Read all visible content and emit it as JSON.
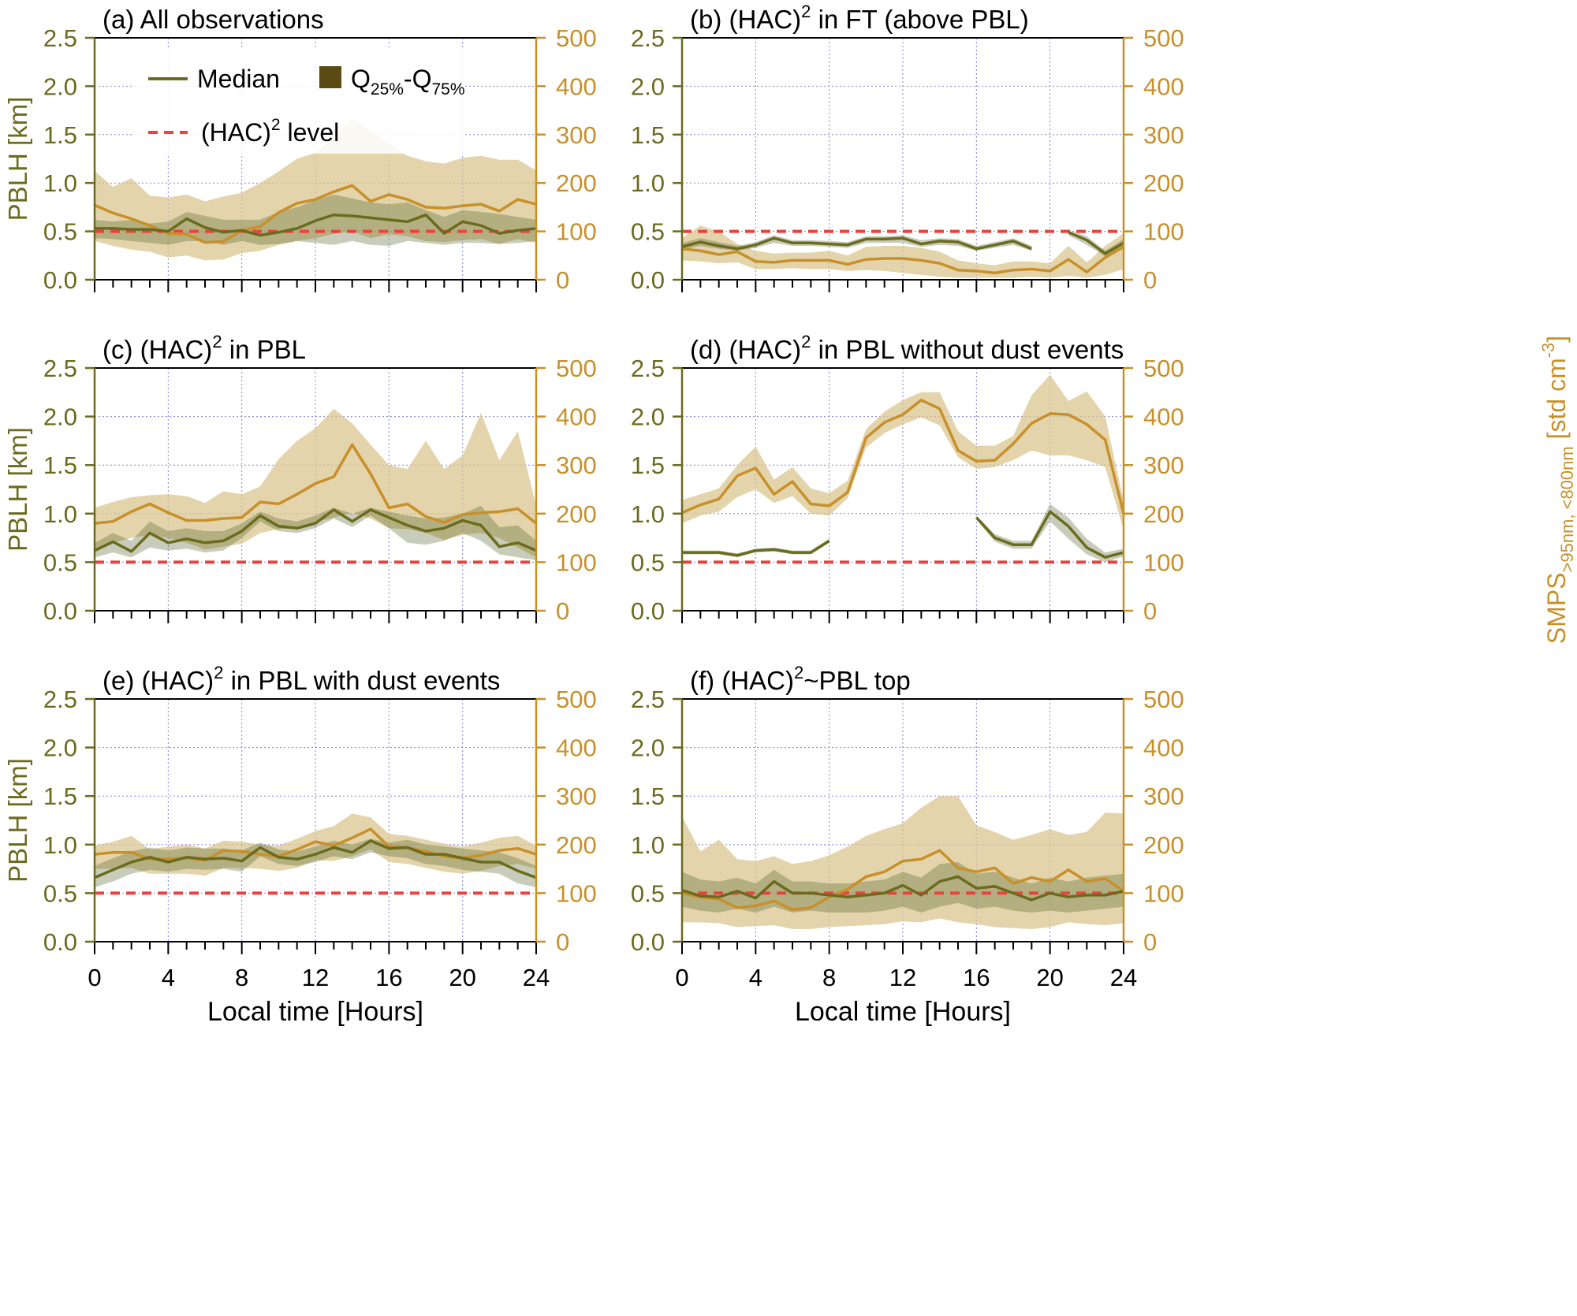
{
  "colors": {
    "pblh": "#6b6b1e",
    "smps": "#c8902a",
    "smps_band": "#d8c48a",
    "pblh_band_fill": "#4a5a1e",
    "hac_level": "#e8443f",
    "grid": "#8080e0",
    "frame": "#000000"
  },
  "legend": {
    "median": "Median",
    "iqr_main": "Q",
    "iqr_sub1": "25%",
    "iqr_dash": "-Q",
    "iqr_sub2": "75%",
    "hac_main": "(HAC)",
    "hac_sup": "2",
    "hac_rest": " level"
  },
  "axes_text": {
    "left_label": "PBLH [km]",
    "right_label_main": "SMPS",
    "right_label_sub": ">95nm, <800nm",
    "right_label_unit": " [std cm",
    "right_label_sup": "-3",
    "right_label_end": "]",
    "x_label": "Local time [Hours]"
  },
  "chart_data": [
    {
      "id": "a",
      "type": "line",
      "title_pre": "(a) All observations",
      "title_sup": "",
      "title_post": "",
      "x": [
        0,
        1,
        2,
        3,
        4,
        5,
        6,
        7,
        8,
        9,
        10,
        11,
        12,
        13,
        14,
        15,
        16,
        17,
        18,
        19,
        20,
        21,
        22,
        23,
        24
      ],
      "pblh_median": [
        0.53,
        0.53,
        0.52,
        0.52,
        0.5,
        0.63,
        0.54,
        0.49,
        0.51,
        0.46,
        0.49,
        0.53,
        0.61,
        0.67,
        0.66,
        0.64,
        0.62,
        0.6,
        0.67,
        0.48,
        0.6,
        0.56,
        0.48,
        0.51,
        0.53
      ],
      "pblh_q25": [
        0.43,
        0.42,
        0.4,
        0.38,
        0.36,
        0.4,
        0.4,
        0.36,
        0.4,
        0.36,
        0.37,
        0.4,
        0.38,
        0.36,
        0.4,
        0.36,
        0.35,
        0.4,
        0.38,
        0.36,
        0.38,
        0.38,
        0.37,
        0.38,
        0.4
      ],
      "pblh_q75": [
        0.62,
        0.6,
        0.62,
        0.58,
        0.6,
        0.7,
        0.66,
        0.62,
        0.62,
        0.62,
        0.7,
        0.75,
        0.82,
        0.88,
        0.84,
        0.8,
        0.78,
        0.8,
        0.72,
        0.65,
        0.72,
        0.7,
        0.68,
        0.65,
        0.62
      ],
      "smps_median": [
        154,
        138,
        126,
        112,
        96,
        94,
        77,
        79,
        102,
        110,
        139,
        158,
        166,
        182,
        195,
        162,
        176,
        166,
        150,
        148,
        153,
        156,
        142,
        166,
        156
      ],
      "smps_q25": [
        80,
        70,
        62,
        58,
        46,
        50,
        40,
        42,
        55,
        60,
        72,
        80,
        86,
        95,
        100,
        86,
        94,
        90,
        80,
        78,
        82,
        84,
        74,
        84,
        76
      ],
      "smps_q75": [
        225,
        192,
        210,
        174,
        170,
        176,
        162,
        172,
        180,
        200,
        224,
        250,
        262,
        296,
        334,
        310,
        282,
        256,
        245,
        240,
        252,
        256,
        248,
        248,
        226
      ],
      "pblh_range": [
        0,
        2.5
      ],
      "smps_range": [
        0,
        500
      ]
    },
    {
      "id": "b",
      "type": "line",
      "title_pre": "(b) (HAC)",
      "title_sup": "2",
      "title_post": " in FT (above PBL)",
      "x": [
        0,
        1,
        2,
        3,
        4,
        5,
        6,
        7,
        8,
        9,
        10,
        11,
        12,
        13,
        14,
        15,
        16,
        17,
        18,
        19,
        20,
        21,
        22,
        23,
        24
      ],
      "pblh_median": [
        0.34,
        0.39,
        0.35,
        0.32,
        0.36,
        0.43,
        0.38,
        0.38,
        0.37,
        0.36,
        0.42,
        0.42,
        0.43,
        0.37,
        0.4,
        0.39,
        0.32,
        0.36,
        0.4,
        0.32,
        null,
        0.49,
        0.41,
        0.27,
        0.38
      ],
      "pblh_q25": [
        0.31,
        0.35,
        0.32,
        0.3,
        0.33,
        0.38,
        0.35,
        0.35,
        0.34,
        0.33,
        0.38,
        0.38,
        0.38,
        0.34,
        0.36,
        0.35,
        0.3,
        0.33,
        0.36,
        0.3,
        null,
        0.46,
        0.36,
        0.24,
        0.35
      ],
      "pblh_q75": [
        0.38,
        0.43,
        0.39,
        0.35,
        0.39,
        0.46,
        0.41,
        0.41,
        0.4,
        0.39,
        0.45,
        0.45,
        0.46,
        0.41,
        0.43,
        0.42,
        0.35,
        0.39,
        0.43,
        0.35,
        null,
        0.51,
        0.45,
        0.3,
        0.42
      ],
      "smps_median": [
        64,
        60,
        52,
        58,
        38,
        36,
        40,
        40,
        40,
        32,
        42,
        44,
        44,
        40,
        34,
        20,
        18,
        14,
        20,
        22,
        18,
        42,
        16,
        46,
        68
      ],
      "smps_q25": [
        40,
        38,
        34,
        36,
        22,
        22,
        24,
        22,
        22,
        18,
        20,
        18,
        14,
        10,
        6,
        4,
        4,
        4,
        4,
        6,
        4,
        8,
        4,
        10,
        22
      ],
      "smps_q75": [
        86,
        112,
        100,
        74,
        60,
        54,
        56,
        56,
        60,
        50,
        68,
        70,
        70,
        66,
        58,
        40,
        34,
        30,
        38,
        38,
        34,
        70,
        36,
        70,
        96
      ],
      "pblh_range": [
        0,
        2.5
      ],
      "smps_range": [
        0,
        500
      ]
    },
    {
      "id": "c",
      "type": "line",
      "title_pre": "(c) (HAC)",
      "title_sup": "2",
      "title_post": " in PBL",
      "x": [
        0,
        1,
        2,
        3,
        4,
        5,
        6,
        7,
        8,
        9,
        10,
        11,
        12,
        13,
        14,
        15,
        16,
        17,
        18,
        19,
        20,
        21,
        22,
        23,
        24
      ],
      "pblh_median": [
        0.62,
        0.71,
        0.61,
        0.8,
        0.7,
        0.74,
        0.7,
        0.72,
        0.82,
        0.98,
        0.87,
        0.85,
        0.9,
        1.04,
        0.92,
        1.04,
        0.96,
        0.88,
        0.82,
        0.85,
        0.93,
        0.88,
        0.66,
        0.7,
        0.62
      ],
      "pblh_q25": [
        0.55,
        0.6,
        0.55,
        0.65,
        0.62,
        0.64,
        0.6,
        0.62,
        0.75,
        0.92,
        0.82,
        0.8,
        0.85,
        0.95,
        0.86,
        0.98,
        0.85,
        0.7,
        0.68,
        0.72,
        0.8,
        0.72,
        0.58,
        0.55,
        0.52
      ],
      "pblh_q75": [
        0.7,
        0.8,
        0.72,
        0.92,
        0.82,
        0.85,
        0.82,
        0.82,
        0.9,
        1.02,
        0.95,
        0.92,
        0.98,
        1.06,
        1.0,
        1.06,
        1.02,
        0.98,
        0.95,
        0.96,
        1.0,
        1.08,
        0.86,
        0.88,
        0.72
      ],
      "smps_median": [
        180,
        184,
        204,
        220,
        202,
        186,
        186,
        190,
        192,
        224,
        220,
        240,
        262,
        276,
        342,
        282,
        212,
        220,
        194,
        182,
        198,
        202,
        204,
        210,
        180
      ],
      "smps_q25": [
        120,
        140,
        150,
        156,
        150,
        140,
        126,
        132,
        138,
        160,
        168,
        170,
        182,
        192,
        202,
        190,
        170,
        168,
        160,
        146,
        156,
        160,
        150,
        130,
        110
      ],
      "smps_q75": [
        212,
        224,
        234,
        238,
        240,
        236,
        222,
        246,
        240,
        256,
        312,
        350,
        376,
        416,
        386,
        342,
        300,
        292,
        350,
        292,
        320,
        408,
        310,
        370,
        216
      ],
      "pblh_range": [
        0,
        2.5
      ],
      "smps_range": [
        0,
        500
      ]
    },
    {
      "id": "d",
      "type": "line",
      "title_pre": "(d) (HAC)",
      "title_sup": "2",
      "title_post": " in PBL without dust events",
      "x": [
        0,
        1,
        2,
        3,
        4,
        5,
        6,
        7,
        8,
        9,
        10,
        11,
        12,
        13,
        14,
        15,
        16,
        17,
        18,
        19,
        20,
        21,
        22,
        23,
        24
      ],
      "pblh_median": [
        0.6,
        0.6,
        0.6,
        0.57,
        0.62,
        0.63,
        0.6,
        0.6,
        0.72,
        null,
        null,
        null,
        null,
        null,
        null,
        null,
        0.96,
        0.75,
        0.68,
        0.68,
        1.02,
        0.87,
        0.65,
        0.55,
        0.6
      ],
      "pblh_q25": [
        0.58,
        0.58,
        0.58,
        0.55,
        0.6,
        0.61,
        0.58,
        0.58,
        0.7,
        null,
        null,
        null,
        null,
        null,
        null,
        null,
        0.94,
        0.71,
        0.64,
        0.64,
        0.92,
        0.74,
        0.58,
        0.5,
        0.56
      ],
      "pblh_q75": [
        0.62,
        0.62,
        0.62,
        0.59,
        0.64,
        0.65,
        0.62,
        0.62,
        0.74,
        null,
        null,
        null,
        null,
        null,
        null,
        null,
        0.98,
        0.79,
        0.72,
        0.72,
        1.1,
        0.96,
        0.74,
        0.6,
        0.64
      ],
      "smps_median": [
        202,
        218,
        230,
        278,
        294,
        240,
        266,
        220,
        216,
        244,
        356,
        388,
        404,
        434,
        416,
        330,
        308,
        310,
        344,
        386,
        406,
        404,
        384,
        352,
        200
      ],
      "smps_q25": [
        180,
        196,
        204,
        234,
        250,
        222,
        236,
        200,
        196,
        232,
        336,
        366,
        384,
        398,
        382,
        316,
        292,
        296,
        310,
        330,
        320,
        320,
        310,
        296,
        166
      ],
      "smps_q75": [
        228,
        240,
        252,
        300,
        338,
        270,
        296,
        252,
        242,
        268,
        374,
        410,
        434,
        450,
        450,
        370,
        340,
        340,
        360,
        444,
        486,
        432,
        452,
        400,
        226
      ],
      "pblh_range": [
        0,
        2.5
      ],
      "smps_range": [
        0,
        500
      ]
    },
    {
      "id": "e",
      "type": "line",
      "title_pre": "(e) (HAC)",
      "title_sup": "2",
      "title_post": " in PBL with dust events",
      "x": [
        0,
        1,
        2,
        3,
        4,
        5,
        6,
        7,
        8,
        9,
        10,
        11,
        12,
        13,
        14,
        15,
        16,
        17,
        18,
        19,
        20,
        21,
        22,
        23,
        24
      ],
      "pblh_median": [
        0.66,
        0.74,
        0.82,
        0.87,
        0.82,
        0.87,
        0.85,
        0.86,
        0.83,
        0.97,
        0.87,
        0.85,
        0.9,
        0.97,
        0.92,
        1.04,
        0.96,
        0.97,
        0.9,
        0.9,
        0.86,
        0.82,
        0.82,
        0.73,
        0.66
      ],
      "pblh_q25": [
        0.56,
        0.62,
        0.7,
        0.74,
        0.72,
        0.75,
        0.74,
        0.75,
        0.72,
        0.88,
        0.8,
        0.78,
        0.82,
        0.88,
        0.85,
        0.92,
        0.88,
        0.86,
        0.8,
        0.78,
        0.74,
        0.72,
        0.7,
        0.6,
        0.56
      ],
      "pblh_q75": [
        0.78,
        0.86,
        0.93,
        0.97,
        0.94,
        0.97,
        0.96,
        0.96,
        0.94,
        1.02,
        0.95,
        0.93,
        0.98,
        1.04,
        1.0,
        1.06,
        1.02,
        1.05,
        1.0,
        0.98,
        0.96,
        0.94,
        0.92,
        0.86,
        0.78
      ],
      "smps_median": [
        180,
        184,
        184,
        170,
        170,
        172,
        168,
        188,
        186,
        180,
        176,
        190,
        206,
        198,
        214,
        232,
        196,
        194,
        186,
        176,
        172,
        178,
        188,
        192,
        180
      ],
      "smps_q25": [
        150,
        150,
        152,
        140,
        140,
        140,
        136,
        152,
        152,
        150,
        146,
        152,
        168,
        166,
        176,
        190,
        164,
        160,
        152,
        144,
        140,
        146,
        156,
        160,
        150
      ],
      "smps_q75": [
        198,
        206,
        218,
        190,
        196,
        200,
        192,
        208,
        206,
        200,
        198,
        212,
        228,
        238,
        264,
        256,
        222,
        218,
        210,
        202,
        196,
        204,
        214,
        218,
        198
      ],
      "pblh_range": [
        0,
        2.5
      ],
      "smps_range": [
        0,
        500
      ]
    },
    {
      "id": "f",
      "type": "line",
      "title_pre": "(f) (HAC)",
      "title_sup": "2",
      "title_post": "~PBL top",
      "x": [
        0,
        1,
        2,
        3,
        4,
        5,
        6,
        7,
        8,
        9,
        10,
        11,
        12,
        13,
        14,
        15,
        16,
        17,
        18,
        19,
        20,
        21,
        22,
        23,
        24
      ],
      "pblh_median": [
        0.53,
        0.47,
        0.46,
        0.52,
        0.45,
        0.62,
        0.5,
        0.5,
        0.48,
        0.46,
        0.48,
        0.5,
        0.58,
        0.48,
        0.62,
        0.67,
        0.55,
        0.57,
        0.5,
        0.43,
        0.5,
        0.46,
        0.48,
        0.48,
        0.52
      ],
      "pblh_q25": [
        0.36,
        0.32,
        0.3,
        0.34,
        0.3,
        0.36,
        0.3,
        0.32,
        0.3,
        0.3,
        0.3,
        0.32,
        0.36,
        0.3,
        0.36,
        0.4,
        0.34,
        0.36,
        0.32,
        0.3,
        0.32,
        0.3,
        0.32,
        0.34,
        0.36
      ],
      "pblh_q75": [
        0.72,
        0.64,
        0.62,
        0.66,
        0.6,
        0.74,
        0.62,
        0.62,
        0.6,
        0.6,
        0.62,
        0.64,
        0.72,
        0.66,
        0.8,
        0.82,
        0.7,
        0.72,
        0.66,
        0.6,
        0.66,
        0.62,
        0.66,
        0.68,
        0.7
      ],
      "smps_median": [
        100,
        92,
        88,
        70,
        74,
        84,
        66,
        70,
        92,
        108,
        134,
        144,
        166,
        170,
        188,
        152,
        144,
        152,
        120,
        132,
        124,
        148,
        124,
        130,
        104
      ],
      "smps_q25": [
        40,
        40,
        38,
        30,
        32,
        34,
        26,
        26,
        30,
        32,
        34,
        36,
        42,
        40,
        48,
        40,
        36,
        30,
        28,
        26,
        30,
        40,
        36,
        34,
        38
      ],
      "smps_q75": [
        258,
        186,
        210,
        170,
        166,
        176,
        160,
        166,
        178,
        196,
        218,
        232,
        244,
        276,
        300,
        300,
        240,
        226,
        210,
        220,
        232,
        220,
        226,
        266,
        264
      ],
      "pblh_range": [
        0,
        2.5
      ],
      "smps_range": [
        0,
        500
      ]
    }
  ]
}
